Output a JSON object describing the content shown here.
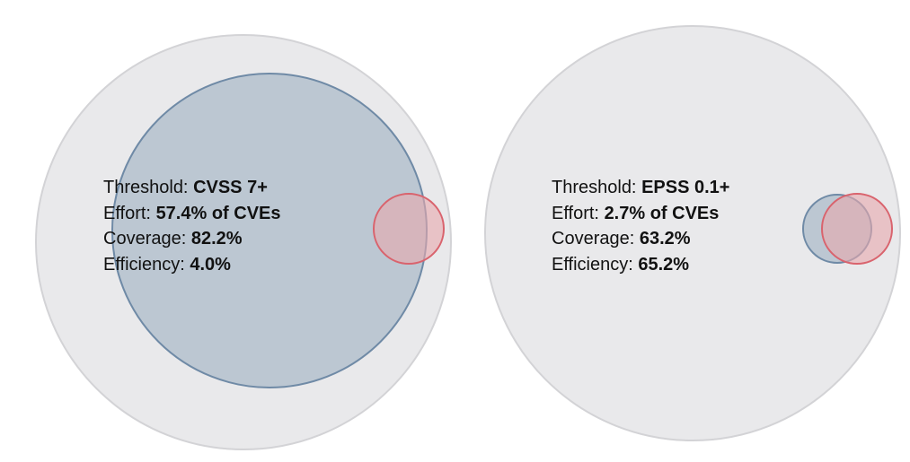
{
  "panels": [
    {
      "threshold_label": "Threshold:",
      "threshold_value": "CVSS 7+",
      "effort_label": "Effort:",
      "effort_value": "57.4% of CVEs",
      "coverage_label": "Coverage:",
      "coverage_value": "82.2%",
      "efficiency_label": "Efficiency:",
      "efficiency_value": "4.0%"
    },
    {
      "threshold_label": "Threshold:",
      "threshold_value": "EPSS 0.1+",
      "effort_label": "Effort:",
      "effort_value": "2.7% of CVEs",
      "coverage_label": "Coverage:",
      "coverage_value": "63.2%",
      "efficiency_label": "Efficiency:",
      "efficiency_value": "65.2%"
    }
  ],
  "colors": {
    "outer_fill": "#e9e9eb",
    "outer_stroke": "#d3d3d6",
    "prioritized_fill": "#b7c3cf",
    "prioritized_stroke": "#6f8aa6",
    "exploited_fill": "#e8a8ae",
    "exploited_stroke": "#d9636d"
  }
}
